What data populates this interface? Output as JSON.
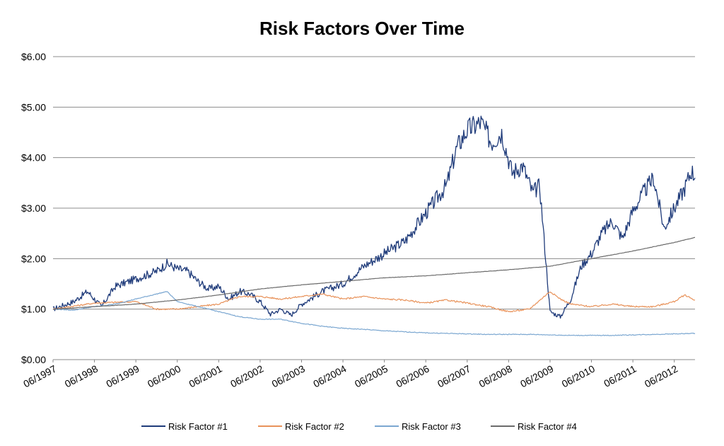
{
  "chart_data": {
    "type": "line",
    "title": "Risk Factors Over Time",
    "xlabel": "",
    "ylabel": "",
    "ylim": [
      0,
      6
    ],
    "xlim": [
      "06/1997",
      "12/2012"
    ],
    "grid": true,
    "legend_position": "bottom",
    "y_ticks": [
      "$0.00",
      "$1.00",
      "$2.00",
      "$3.00",
      "$4.00",
      "$5.00",
      "$6.00"
    ],
    "x_ticks": [
      "06/1997",
      "06/1998",
      "06/1999",
      "06/2000",
      "06/2001",
      "06/2002",
      "06/2003",
      "06/2004",
      "06/2005",
      "06/2006",
      "06/2007",
      "06/2008",
      "06/2009",
      "06/2010",
      "06/2011",
      "06/2012"
    ],
    "series": [
      {
        "name": "Risk Factor #1",
        "color": "#1f3b7a",
        "points": [
          [
            "06/1997",
            1.0
          ],
          [
            "12/1997",
            1.15
          ],
          [
            "04/1998",
            1.35
          ],
          [
            "08/1998",
            1.05
          ],
          [
            "12/1998",
            1.45
          ],
          [
            "06/1999",
            1.6
          ],
          [
            "12/1999",
            1.75
          ],
          [
            "03/2000",
            1.9
          ],
          [
            "06/2000",
            1.8
          ],
          [
            "09/2000",
            1.75
          ],
          [
            "12/2000",
            1.55
          ],
          [
            "03/2001",
            1.4
          ],
          [
            "06/2001",
            1.45
          ],
          [
            "09/2001",
            1.2
          ],
          [
            "12/2001",
            1.35
          ],
          [
            "03/2002",
            1.3
          ],
          [
            "06/2002",
            1.15
          ],
          [
            "09/2002",
            0.9
          ],
          [
            "12/2002",
            1.0
          ],
          [
            "03/2003",
            0.88
          ],
          [
            "06/2003",
            1.1
          ],
          [
            "12/2003",
            1.35
          ],
          [
            "06/2004",
            1.5
          ],
          [
            "12/2004",
            1.85
          ],
          [
            "06/2005",
            2.1
          ],
          [
            "12/2005",
            2.35
          ],
          [
            "06/2006",
            2.9
          ],
          [
            "12/2006",
            3.45
          ],
          [
            "03/2007",
            4.2
          ],
          [
            "06/2007",
            4.55
          ],
          [
            "10/2007",
            4.7
          ],
          [
            "01/2008",
            4.3
          ],
          [
            "04/2008",
            4.5
          ],
          [
            "07/2008",
            3.7
          ],
          [
            "10/2008",
            3.85
          ],
          [
            "01/2009",
            3.3
          ],
          [
            "03/2009",
            3.45
          ],
          [
            "06/2009",
            0.95
          ],
          [
            "09/2009",
            0.85
          ],
          [
            "12/2009",
            1.2
          ],
          [
            "03/2010",
            1.85
          ],
          [
            "06/2010",
            2.1
          ],
          [
            "09/2010",
            2.5
          ],
          [
            "12/2010",
            2.75
          ],
          [
            "03/2011",
            2.4
          ],
          [
            "06/2011",
            2.95
          ],
          [
            "09/2011",
            3.3
          ],
          [
            "12/2011",
            3.6
          ],
          [
            "03/2012",
            2.6
          ],
          [
            "06/2012",
            3.0
          ],
          [
            "09/2012",
            3.4
          ],
          [
            "11/2012",
            3.75
          ],
          [
            "12/2012",
            3.6
          ]
        ]
      },
      {
        "name": "Risk Factor #2",
        "color": "#e8925a",
        "points": [
          [
            "06/1997",
            1.0
          ],
          [
            "06/1998",
            1.12
          ],
          [
            "06/1999",
            1.15
          ],
          [
            "12/1999",
            1.0
          ],
          [
            "06/2000",
            1.0
          ],
          [
            "12/2000",
            1.05
          ],
          [
            "06/2001",
            1.1
          ],
          [
            "12/2001",
            1.25
          ],
          [
            "06/2002",
            1.25
          ],
          [
            "12/2002",
            1.2
          ],
          [
            "06/2003",
            1.25
          ],
          [
            "12/2003",
            1.3
          ],
          [
            "06/2004",
            1.2
          ],
          [
            "12/2004",
            1.25
          ],
          [
            "06/2005",
            1.2
          ],
          [
            "12/2005",
            1.18
          ],
          [
            "06/2006",
            1.12
          ],
          [
            "12/2006",
            1.18
          ],
          [
            "06/2007",
            1.12
          ],
          [
            "12/2007",
            1.05
          ],
          [
            "06/2008",
            0.95
          ],
          [
            "12/2008",
            1.0
          ],
          [
            "06/2009",
            1.35
          ],
          [
            "09/2009",
            1.2
          ],
          [
            "12/2009",
            1.1
          ],
          [
            "06/2010",
            1.05
          ],
          [
            "12/2010",
            1.1
          ],
          [
            "06/2011",
            1.05
          ],
          [
            "12/2011",
            1.05
          ],
          [
            "06/2012",
            1.15
          ],
          [
            "09/2012",
            1.28
          ],
          [
            "12/2012",
            1.18
          ]
        ]
      },
      {
        "name": "Risk Factor #3",
        "color": "#7ba7d1",
        "points": [
          [
            "06/1997",
            1.0
          ],
          [
            "12/1997",
            0.98
          ],
          [
            "06/1998",
            1.05
          ],
          [
            "12/1998",
            1.1
          ],
          [
            "06/1999",
            1.2
          ],
          [
            "12/1999",
            1.3
          ],
          [
            "03/2000",
            1.35
          ],
          [
            "06/2000",
            1.15
          ],
          [
            "12/2000",
            1.05
          ],
          [
            "06/2001",
            0.95
          ],
          [
            "12/2001",
            0.85
          ],
          [
            "06/2002",
            0.8
          ],
          [
            "12/2002",
            0.8
          ],
          [
            "06/2003",
            0.72
          ],
          [
            "12/2003",
            0.66
          ],
          [
            "06/2004",
            0.62
          ],
          [
            "12/2004",
            0.6
          ],
          [
            "06/2005",
            0.57
          ],
          [
            "12/2005",
            0.55
          ],
          [
            "06/2006",
            0.53
          ],
          [
            "12/2006",
            0.52
          ],
          [
            "06/2007",
            0.51
          ],
          [
            "12/2007",
            0.5
          ],
          [
            "06/2008",
            0.5
          ],
          [
            "12/2008",
            0.5
          ],
          [
            "06/2009",
            0.49
          ],
          [
            "12/2009",
            0.48
          ],
          [
            "06/2010",
            0.48
          ],
          [
            "12/2010",
            0.48
          ],
          [
            "06/2011",
            0.49
          ],
          [
            "12/2011",
            0.5
          ],
          [
            "06/2012",
            0.51
          ],
          [
            "12/2012",
            0.52
          ]
        ]
      },
      {
        "name": "Risk Factor #4",
        "color": "#6b6b6b",
        "points": [
          [
            "06/1997",
            1.0
          ],
          [
            "06/1998",
            1.05
          ],
          [
            "06/1999",
            1.1
          ],
          [
            "06/2000",
            1.18
          ],
          [
            "06/2001",
            1.28
          ],
          [
            "06/2002",
            1.4
          ],
          [
            "06/2003",
            1.48
          ],
          [
            "06/2004",
            1.55
          ],
          [
            "06/2005",
            1.62
          ],
          [
            "06/2006",
            1.66
          ],
          [
            "06/2007",
            1.72
          ],
          [
            "06/2008",
            1.78
          ],
          [
            "06/2009",
            1.85
          ],
          [
            "06/2010",
            2.0
          ],
          [
            "06/2011",
            2.15
          ],
          [
            "06/2012",
            2.32
          ],
          [
            "12/2012",
            2.42
          ]
        ]
      }
    ]
  }
}
